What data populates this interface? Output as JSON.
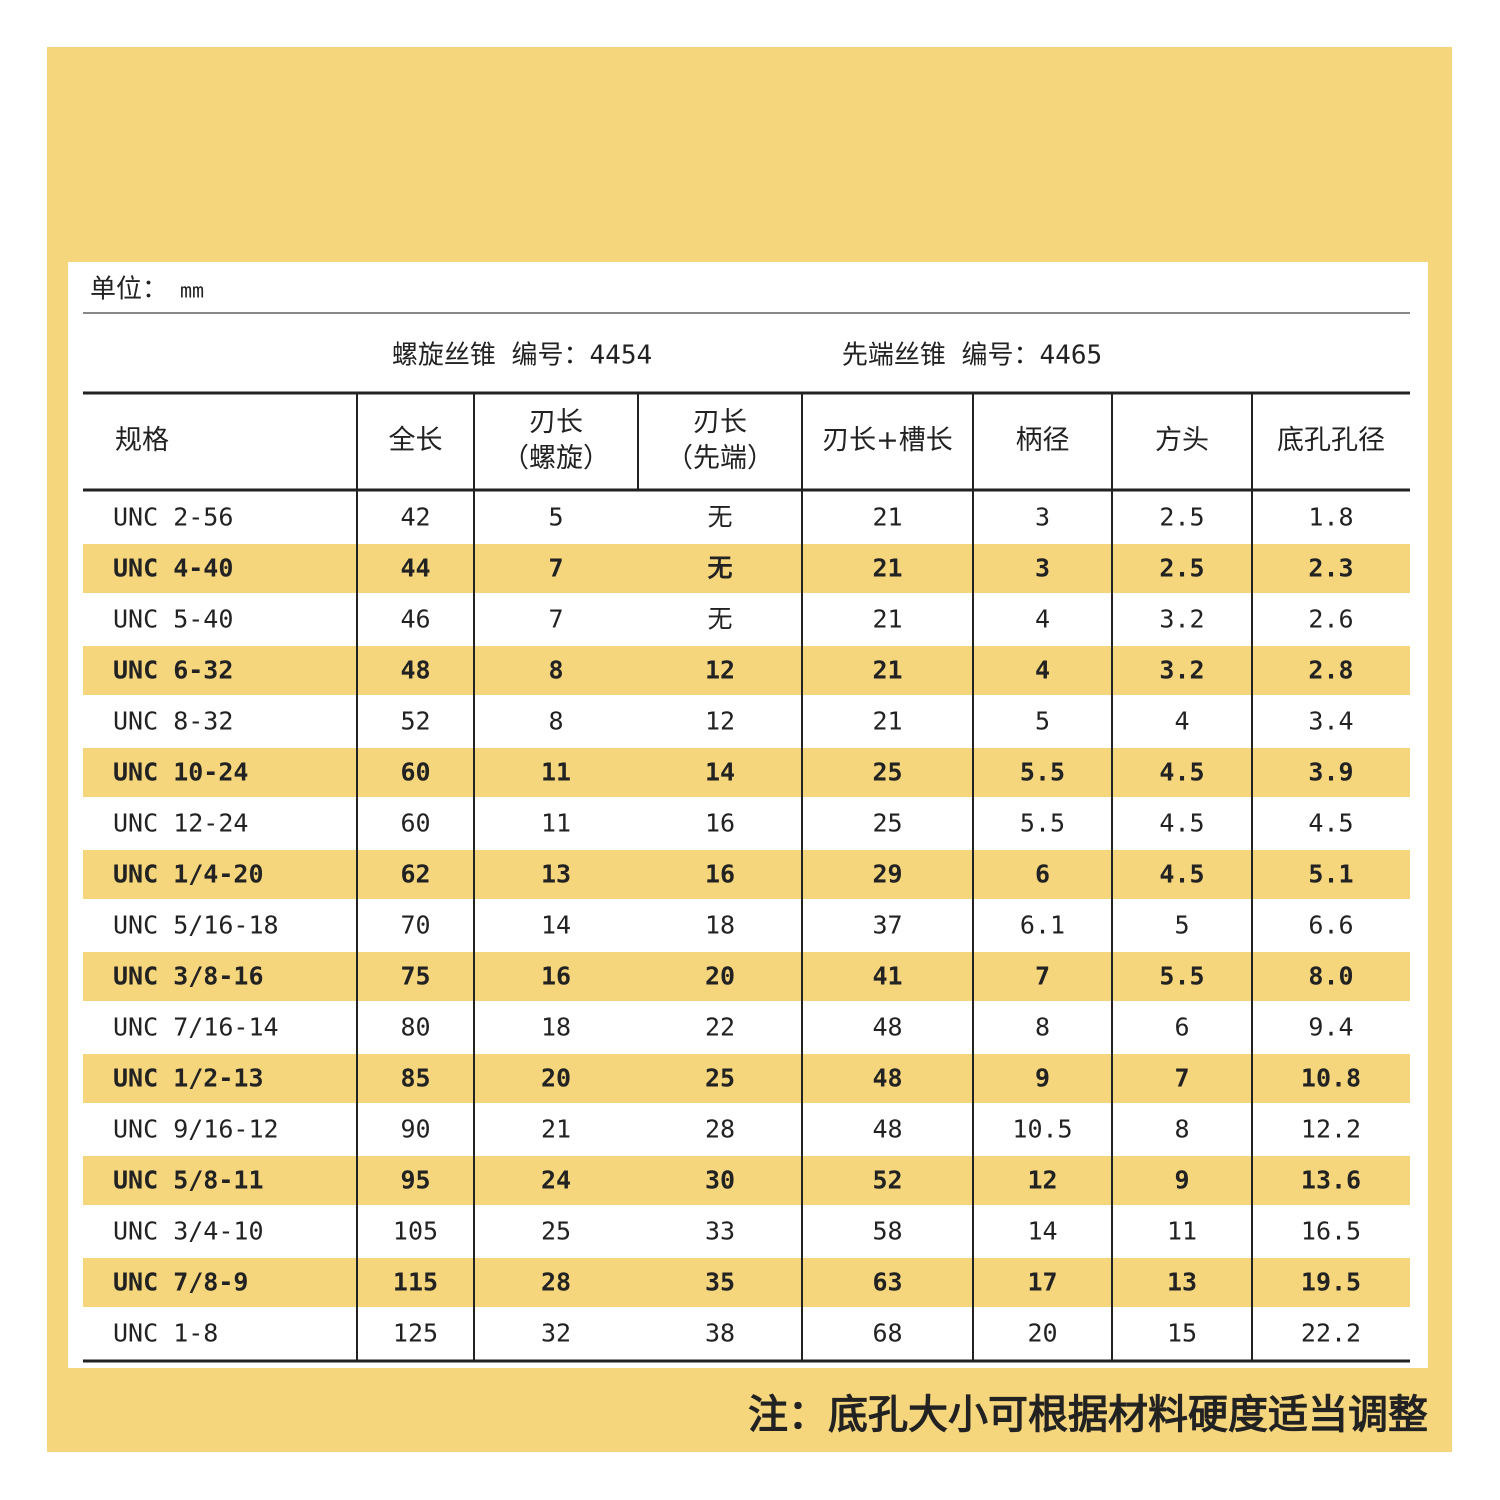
{
  "header": {
    "unit_label": "单位：",
    "unit": "mm",
    "products": [
      "螺旋丝锥 编号：4454",
      "先端丝锥 编号：4465"
    ]
  },
  "table": {
    "columns": [
      [
        "规格"
      ],
      [
        "全长"
      ],
      [
        "刃长",
        "（螺旋）"
      ],
      [
        "刃长",
        "（先端）"
      ],
      [
        "刃长+槽长"
      ],
      [
        "柄径"
      ],
      [
        "方头"
      ],
      [
        "底孔孔径"
      ]
    ],
    "rows": [
      [
        "UNC 2-56",
        "42",
        "5",
        "无",
        "21",
        "3",
        "2.5",
        "1.8"
      ],
      [
        "UNC 4-40",
        "44",
        "7",
        "无",
        "21",
        "3",
        "2.5",
        "2.3"
      ],
      [
        "UNC 5-40",
        "46",
        "7",
        "无",
        "21",
        "4",
        "3.2",
        "2.6"
      ],
      [
        "UNC 6-32",
        "48",
        "8",
        "12",
        "21",
        "4",
        "3.2",
        "2.8"
      ],
      [
        "UNC 8-32",
        "52",
        "8",
        "12",
        "21",
        "5",
        "4",
        "3.4"
      ],
      [
        "UNC 10-24",
        "60",
        "11",
        "14",
        "25",
        "5.5",
        "4.5",
        "3.9"
      ],
      [
        "UNC 12-24",
        "60",
        "11",
        "16",
        "25",
        "5.5",
        "4.5",
        "4.5"
      ],
      [
        "UNC 1/4-20",
        "62",
        "13",
        "16",
        "29",
        "6",
        "4.5",
        "5.1"
      ],
      [
        "UNC 5/16-18",
        "70",
        "14",
        "18",
        "37",
        "6.1",
        "5",
        "6.6"
      ],
      [
        "UNC 3/8-16",
        "75",
        "16",
        "20",
        "41",
        "7",
        "5.5",
        "8.0"
      ],
      [
        "UNC 7/16-14",
        "80",
        "18",
        "22",
        "48",
        "8",
        "6",
        "9.4"
      ],
      [
        "UNC 1/2-13",
        "85",
        "20",
        "25",
        "48",
        "9",
        "7",
        "10.8"
      ],
      [
        "UNC 9/16-12",
        "90",
        "21",
        "28",
        "48",
        "10.5",
        "8",
        "12.2"
      ],
      [
        "UNC 5/8-11",
        "95",
        "24",
        "30",
        "52",
        "12",
        "9",
        "13.6"
      ],
      [
        "UNC 3/4-10",
        "105",
        "25",
        "33",
        "58",
        "14",
        "11",
        "16.5"
      ],
      [
        "UNC 7/8-9",
        "115",
        "28",
        "35",
        "63",
        "17",
        "13",
        "19.5"
      ],
      [
        "UNC 1-8",
        "125",
        "32",
        "38",
        "68",
        "20",
        "15",
        "22.2"
      ]
    ]
  },
  "note": "注：底孔大小可根据材料硬度适当调整"
}
